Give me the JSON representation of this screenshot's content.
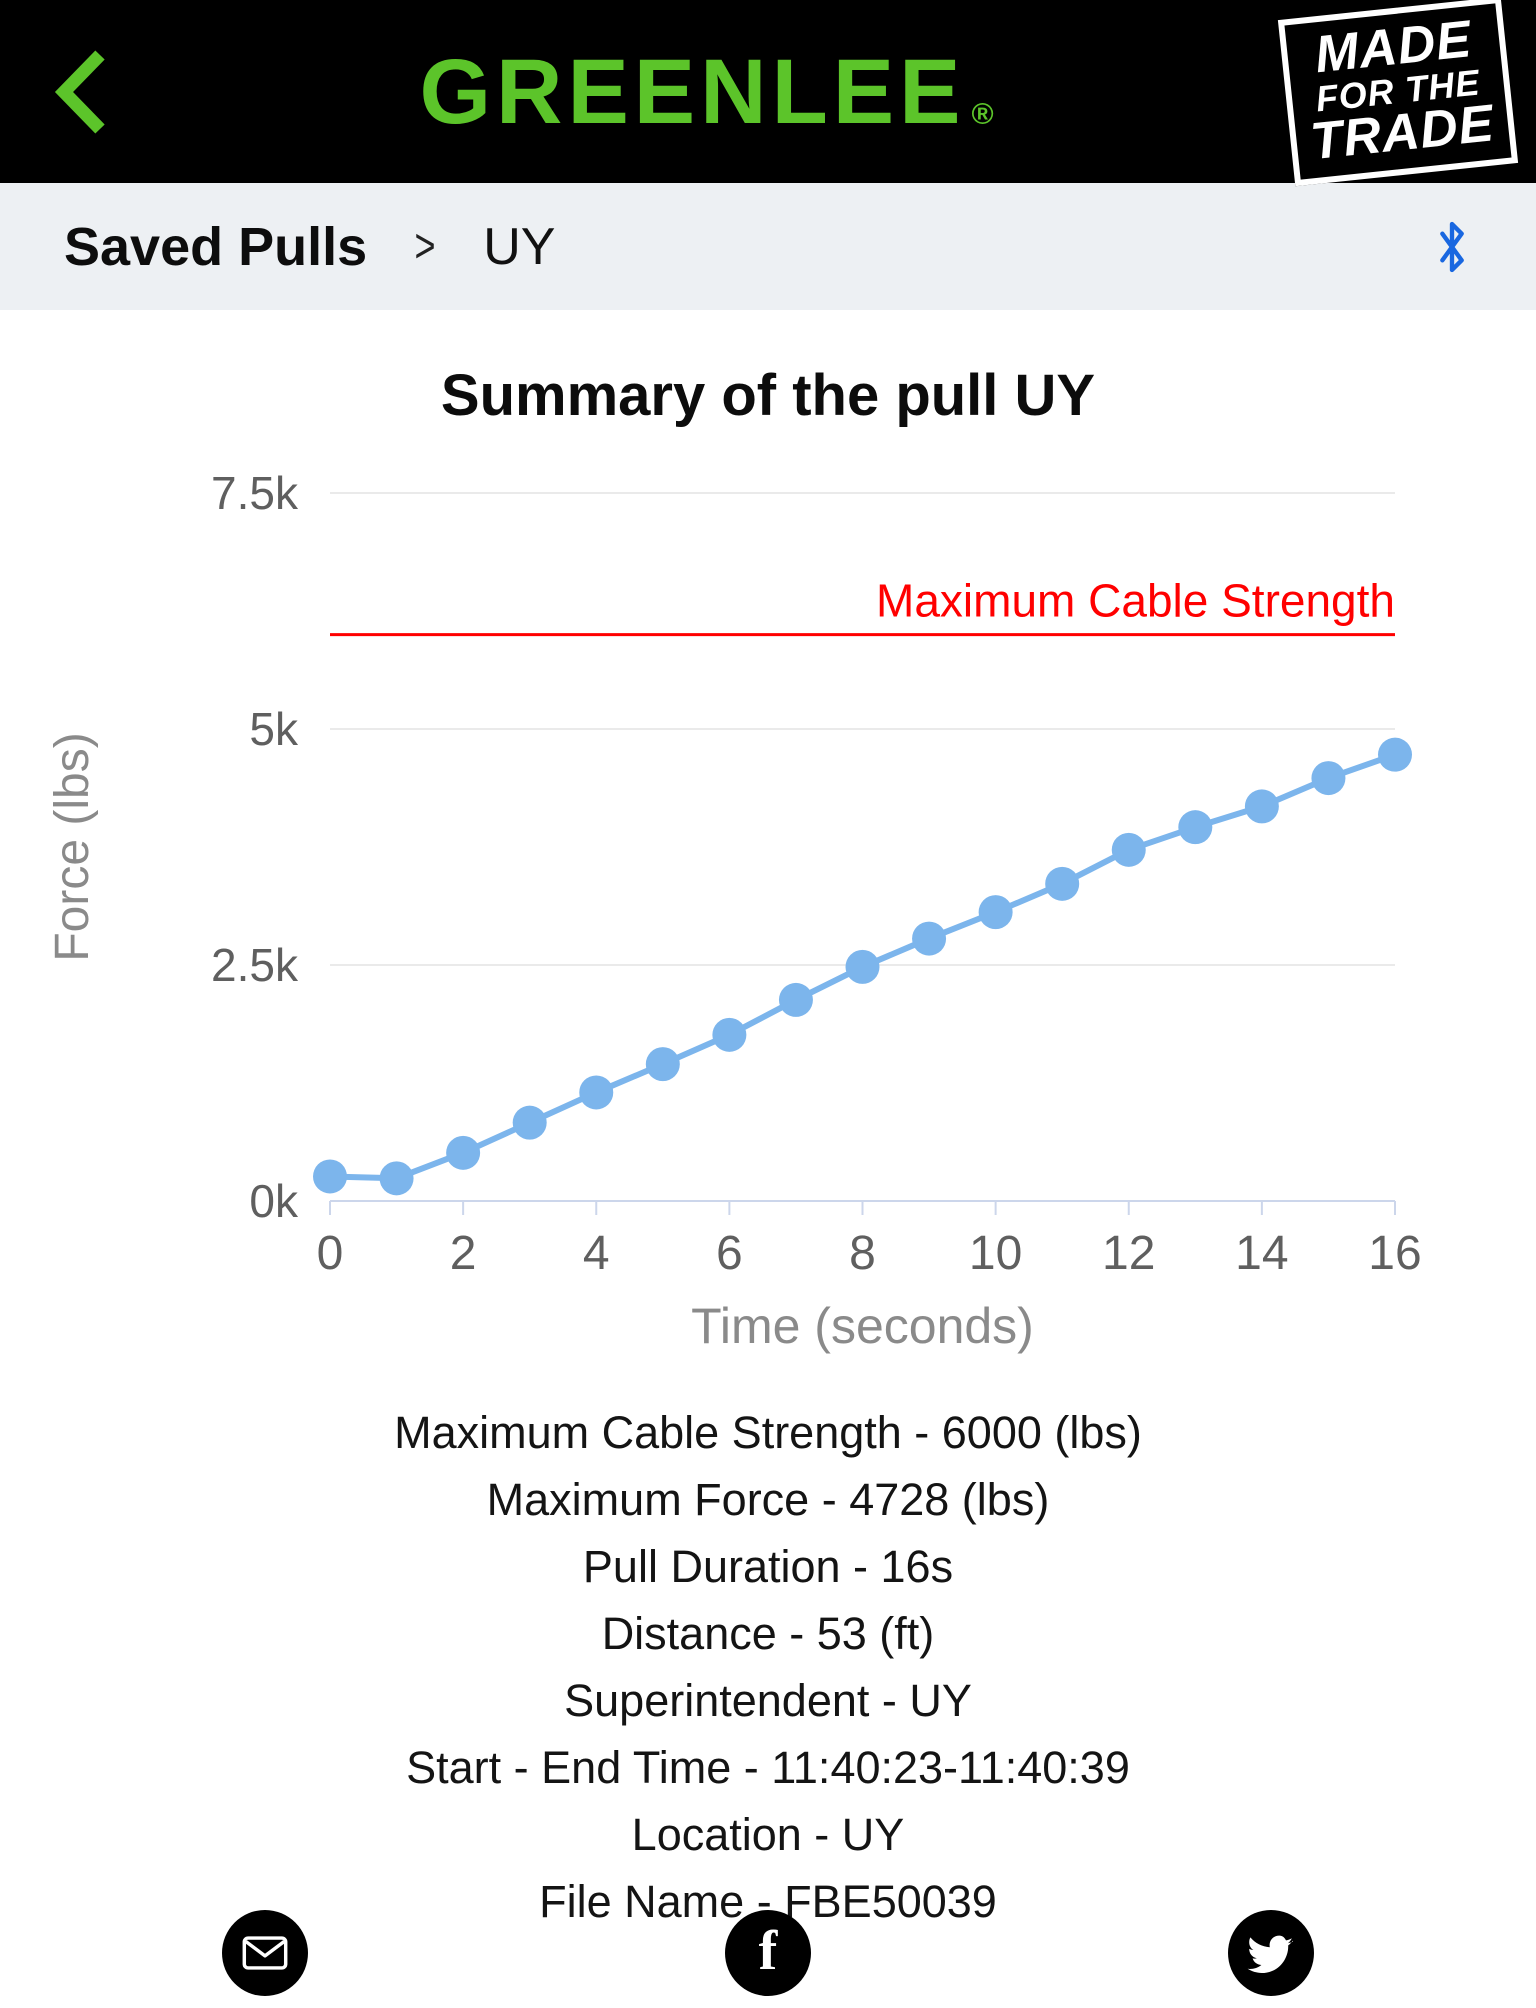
{
  "header": {
    "logo": "GREENLEE",
    "registered": "®",
    "badge_lines": [
      "MADE",
      "FOR THE",
      "TRADE"
    ]
  },
  "breadcrumb": {
    "parent": "Saved Pulls",
    "separator": ">",
    "current": "UY"
  },
  "page": {
    "title": "Summary of the pull UY"
  },
  "chart_data": {
    "type": "line",
    "x": [
      0,
      1,
      2,
      3,
      4,
      5,
      6,
      7,
      8,
      9,
      10,
      11,
      12,
      13,
      14,
      15,
      16
    ],
    "series": [
      {
        "name": "Force",
        "values": [
          260,
          240,
          510,
          830,
          1150,
          1450,
          1760,
          2130,
          2480,
          2780,
          3060,
          3360,
          3720,
          3960,
          4180,
          4480,
          4728
        ]
      }
    ],
    "title": "",
    "xlabel": "Time (seconds)",
    "ylabel": "Force (lbs)",
    "xlim": [
      0,
      16
    ],
    "ylim": [
      0,
      7500
    ],
    "xticks": [
      0,
      2,
      4,
      6,
      8,
      10,
      12,
      14,
      16
    ],
    "yticks": [
      0,
      2500,
      5000,
      7500
    ],
    "ytick_labels": [
      "0k",
      "2.5k",
      "5k",
      "7.5k"
    ],
    "grid": true,
    "legend": "none",
    "threshold": {
      "value": 6000,
      "label": "Maximum Cable Strength",
      "color": "#ff0000"
    },
    "line_color": "#7cb5ec",
    "axis_color": "#ccd6eb",
    "grid_color": "#e3e3e3",
    "tick_label_color": "#5f5f5f",
    "axis_title_color": "#8a8a8a"
  },
  "summary": {
    "lines": [
      "Maximum Cable Strength - 6000 (lbs)",
      "Maximum Force - 4728 (lbs)",
      "Pull Duration - 16s",
      "Distance - 53 (ft)",
      "Superintendent - UY",
      "Start - End Time - 11:40:23-11:40:39",
      "Location - UY",
      "File Name -  FBE50039"
    ]
  },
  "share": {
    "email": "email-share",
    "facebook": "facebook-share",
    "twitter": "twitter-share"
  },
  "colors": {
    "green": "#5cc42a",
    "bluetooth": "#1967e0",
    "red": "#ff0000",
    "series_blue": "#7cb5ec"
  }
}
